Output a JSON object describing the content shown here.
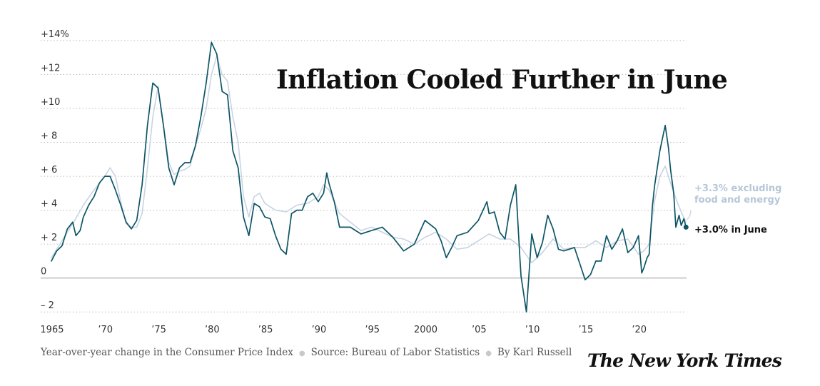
{
  "chart_data": {
    "type": "line",
    "title": "Inflation Cooled Further in June",
    "yticks": [
      "+14%",
      "+12",
      "+10",
      "+ 8",
      "+ 6",
      "+ 4",
      "+ 2",
      "0",
      "– 2"
    ],
    "ytick_values": [
      14,
      12,
      10,
      8,
      6,
      4,
      2,
      0,
      -2
    ],
    "xticks": [
      "1965",
      "’70",
      "’75",
      "’80",
      "’85",
      "’90",
      "’95",
      "2000",
      "’05",
      "’10",
      "’15",
      "’20"
    ],
    "xtick_values": [
      1965,
      1970,
      1975,
      1980,
      1985,
      1990,
      1995,
      2000,
      2005,
      2010,
      2015,
      2020
    ],
    "xlim": [
      1964.0,
      2024.5
    ],
    "ylim": [
      -2.2,
      14.5
    ],
    "grid": true,
    "series": [
      {
        "id": "core",
        "color": "#c8d4e3",
        "points": [
          [
            1965.0,
            1.2
          ],
          [
            1966.0,
            2.2
          ],
          [
            1967.0,
            3.2
          ],
          [
            1968.0,
            4.3
          ],
          [
            1969.0,
            5.2
          ],
          [
            1970.0,
            6.0
          ],
          [
            1970.5,
            6.5
          ],
          [
            1971.0,
            6.0
          ],
          [
            1971.5,
            4.5
          ],
          [
            1972.0,
            3.2
          ],
          [
            1972.5,
            3.0
          ],
          [
            1973.0,
            3.0
          ],
          [
            1973.5,
            3.8
          ],
          [
            1974.0,
            6.5
          ],
          [
            1974.5,
            9.5
          ],
          [
            1975.0,
            11.3
          ],
          [
            1975.5,
            9.0
          ],
          [
            1976.0,
            6.8
          ],
          [
            1976.5,
            6.1
          ],
          [
            1977.0,
            6.3
          ],
          [
            1977.5,
            6.4
          ],
          [
            1978.0,
            6.6
          ],
          [
            1978.5,
            7.8
          ],
          [
            1979.0,
            8.8
          ],
          [
            1979.5,
            10.0
          ],
          [
            1980.0,
            12.0
          ],
          [
            1980.5,
            13.1
          ],
          [
            1981.0,
            12.0
          ],
          [
            1981.5,
            11.6
          ],
          [
            1982.0,
            9.5
          ],
          [
            1982.5,
            8.0
          ],
          [
            1983.0,
            4.8
          ],
          [
            1983.5,
            3.6
          ],
          [
            1984.0,
            4.8
          ],
          [
            1984.5,
            5.0
          ],
          [
            1985.0,
            4.4
          ],
          [
            1986.0,
            4.0
          ],
          [
            1987.0,
            3.9
          ],
          [
            1988.0,
            4.3
          ],
          [
            1989.0,
            4.4
          ],
          [
            1990.0,
            4.8
          ],
          [
            1990.5,
            5.5
          ],
          [
            1991.0,
            5.2
          ],
          [
            1992.0,
            3.8
          ],
          [
            1993.0,
            3.3
          ],
          [
            1994.0,
            2.8
          ],
          [
            1995.0,
            3.0
          ],
          [
            1996.0,
            2.7
          ],
          [
            1997.0,
            2.4
          ],
          [
            1998.0,
            2.3
          ],
          [
            1999.0,
            2.0
          ],
          [
            2000.0,
            2.4
          ],
          [
            2001.0,
            2.7
          ],
          [
            2002.0,
            2.3
          ],
          [
            2003.0,
            1.7
          ],
          [
            2004.0,
            1.8
          ],
          [
            2005.0,
            2.2
          ],
          [
            2006.0,
            2.6
          ],
          [
            2007.0,
            2.3
          ],
          [
            2008.0,
            2.3
          ],
          [
            2009.0,
            1.8
          ],
          [
            2010.0,
            0.9
          ],
          [
            2011.0,
            1.5
          ],
          [
            2012.0,
            2.3
          ],
          [
            2013.0,
            1.7
          ],
          [
            2014.0,
            1.8
          ],
          [
            2015.0,
            1.8
          ],
          [
            2016.0,
            2.2
          ],
          [
            2017.0,
            1.8
          ],
          [
            2018.0,
            2.2
          ],
          [
            2019.0,
            2.3
          ],
          [
            2020.0,
            1.4
          ],
          [
            2020.5,
            1.6
          ],
          [
            2021.0,
            2.0
          ],
          [
            2021.5,
            4.5
          ],
          [
            2022.0,
            6.0
          ],
          [
            2022.5,
            6.6
          ],
          [
            2023.0,
            5.6
          ],
          [
            2023.5,
            4.7
          ],
          [
            2024.0,
            3.9
          ],
          [
            2024.45,
            3.3
          ]
        ]
      },
      {
        "id": "headline",
        "color": "#0d5566",
        "points": [
          [
            1965.0,
            1.0
          ],
          [
            1965.5,
            1.6
          ],
          [
            1966.0,
            1.9
          ],
          [
            1966.5,
            2.9
          ],
          [
            1967.0,
            3.3
          ],
          [
            1967.3,
            2.5
          ],
          [
            1967.7,
            2.8
          ],
          [
            1968.0,
            3.6
          ],
          [
            1968.5,
            4.3
          ],
          [
            1969.0,
            4.8
          ],
          [
            1969.5,
            5.6
          ],
          [
            1970.0,
            6.0
          ],
          [
            1970.5,
            6.0
          ],
          [
            1971.0,
            5.2
          ],
          [
            1971.5,
            4.3
          ],
          [
            1972.0,
            3.3
          ],
          [
            1972.5,
            2.9
          ],
          [
            1973.0,
            3.4
          ],
          [
            1973.5,
            5.5
          ],
          [
            1974.0,
            9.0
          ],
          [
            1974.5,
            11.5
          ],
          [
            1975.0,
            11.2
          ],
          [
            1975.5,
            9.0
          ],
          [
            1976.0,
            6.5
          ],
          [
            1976.5,
            5.5
          ],
          [
            1977.0,
            6.5
          ],
          [
            1977.5,
            6.8
          ],
          [
            1978.0,
            6.8
          ],
          [
            1978.5,
            7.8
          ],
          [
            1979.0,
            9.5
          ],
          [
            1979.5,
            11.5
          ],
          [
            1980.0,
            13.9
          ],
          [
            1980.5,
            13.2
          ],
          [
            1981.0,
            11.0
          ],
          [
            1981.5,
            10.8
          ],
          [
            1982.0,
            7.5
          ],
          [
            1982.5,
            6.5
          ],
          [
            1983.0,
            3.6
          ],
          [
            1983.5,
            2.5
          ],
          [
            1984.0,
            4.4
          ],
          [
            1984.5,
            4.2
          ],
          [
            1985.0,
            3.6
          ],
          [
            1985.5,
            3.5
          ],
          [
            1986.0,
            2.5
          ],
          [
            1986.5,
            1.7
          ],
          [
            1987.0,
            1.4
          ],
          [
            1987.5,
            3.8
          ],
          [
            1988.0,
            4.0
          ],
          [
            1988.5,
            4.0
          ],
          [
            1989.0,
            4.8
          ],
          [
            1989.5,
            5.0
          ],
          [
            1990.0,
            4.5
          ],
          [
            1990.5,
            5.0
          ],
          [
            1990.8,
            6.2
          ],
          [
            1991.0,
            5.6
          ],
          [
            1991.5,
            4.5
          ],
          [
            1992.0,
            3.0
          ],
          [
            1993.0,
            3.0
          ],
          [
            1994.0,
            2.6
          ],
          [
            1995.0,
            2.8
          ],
          [
            1996.0,
            3.0
          ],
          [
            1997.0,
            2.4
          ],
          [
            1998.0,
            1.6
          ],
          [
            1999.0,
            2.0
          ],
          [
            2000.0,
            3.4
          ],
          [
            2001.0,
            2.9
          ],
          [
            2001.5,
            2.2
          ],
          [
            2002.0,
            1.2
          ],
          [
            2002.5,
            1.8
          ],
          [
            2003.0,
            2.5
          ],
          [
            2004.0,
            2.7
          ],
          [
            2005.0,
            3.4
          ],
          [
            2005.8,
            4.5
          ],
          [
            2006.0,
            3.8
          ],
          [
            2006.5,
            3.9
          ],
          [
            2007.0,
            2.7
          ],
          [
            2007.5,
            2.3
          ],
          [
            2008.0,
            4.3
          ],
          [
            2008.5,
            5.5
          ],
          [
            2008.9,
            1.1
          ],
          [
            2009.0,
            0.1
          ],
          [
            2009.5,
            -2.0
          ],
          [
            2010.0,
            2.6
          ],
          [
            2010.5,
            1.2
          ],
          [
            2011.0,
            2.1
          ],
          [
            2011.5,
            3.7
          ],
          [
            2012.0,
            2.9
          ],
          [
            2012.5,
            1.7
          ],
          [
            2013.0,
            1.6
          ],
          [
            2014.0,
            1.8
          ],
          [
            2015.0,
            -0.1
          ],
          [
            2015.5,
            0.2
          ],
          [
            2016.0,
            1.0
          ],
          [
            2016.5,
            1.0
          ],
          [
            2017.0,
            2.5
          ],
          [
            2017.5,
            1.7
          ],
          [
            2018.0,
            2.2
          ],
          [
            2018.5,
            2.9
          ],
          [
            2019.0,
            1.5
          ],
          [
            2019.5,
            1.8
          ],
          [
            2020.0,
            2.5
          ],
          [
            2020.3,
            0.3
          ],
          [
            2020.5,
            0.6
          ],
          [
            2020.8,
            1.2
          ],
          [
            2021.0,
            1.4
          ],
          [
            2021.3,
            4.2
          ],
          [
            2021.5,
            5.4
          ],
          [
            2022.0,
            7.5
          ],
          [
            2022.5,
            9.0
          ],
          [
            2022.8,
            7.7
          ],
          [
            2023.0,
            6.4
          ],
          [
            2023.3,
            5.0
          ],
          [
            2023.5,
            3.0
          ],
          [
            2023.8,
            3.7
          ],
          [
            2024.0,
            3.1
          ],
          [
            2024.25,
            3.5
          ],
          [
            2024.45,
            3.0
          ]
        ]
      }
    ],
    "annotations": {
      "core_line1": "+3.3% excluding",
      "core_line2": "food and energy",
      "headline": "+3.0% in June"
    }
  },
  "footer": {
    "caption": "Year-over-year change in the Consumer Price Index",
    "sep": "●",
    "source": "Source: Bureau of Labor Statistics",
    "byline": "By Karl Russell",
    "logo": "The New York Times"
  }
}
